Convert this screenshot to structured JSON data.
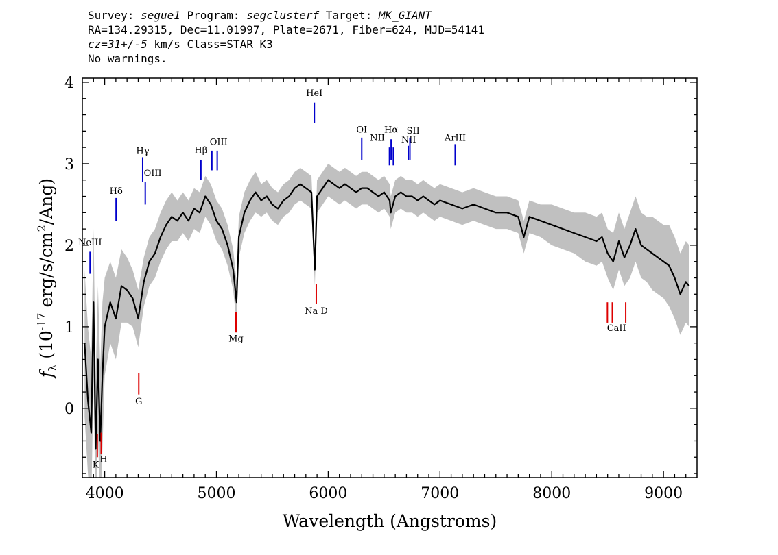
{
  "header": {
    "line1": {
      "survey_label": "Survey: ",
      "survey": "segue1",
      "program_label": " Program: ",
      "program": "segclusterf",
      "target_label": " Target: ",
      "target": "MK_GIANT"
    },
    "line2": "RA=134.29315, Dec=11.01997, Plate=2671, Fiber=624, MJD=54141",
    "line3": {
      "cz": "cz=31+/-5",
      "rest": " km/s Class=STAR K3"
    },
    "line4": "No warnings."
  },
  "colors": {
    "flux": "#000000",
    "error": "#c0c0c0",
    "emission": "#0000cc",
    "absorption": "#dd0000"
  },
  "chart_data": {
    "type": "line",
    "xlabel": "Wavelength (Angstroms)",
    "ylabel": "f_λ (10^-17 erg/s/cm²/Ang)",
    "xlim": [
      3800,
      9300
    ],
    "ylim": [
      -0.85,
      4.05
    ],
    "x_ticks": [
      "4000",
      "5000",
      "6000",
      "7000",
      "8000",
      "9000"
    ],
    "y_ticks": [
      "0",
      "1",
      "2",
      "3",
      "4"
    ],
    "series": [
      {
        "points": [
          [
            3820,
            0.8
          ],
          [
            3850,
            0.1
          ],
          [
            3880,
            -0.3
          ],
          [
            3900,
            1.3
          ],
          [
            3920,
            -0.5
          ],
          [
            3940,
            0.6
          ],
          [
            3960,
            -0.4
          ],
          [
            3980,
            0.4
          ],
          [
            4000,
            1.0
          ],
          [
            4050,
            1.3
          ],
          [
            4100,
            1.1
          ],
          [
            4150,
            1.5
          ],
          [
            4200,
            1.45
          ],
          [
            4250,
            1.35
          ],
          [
            4300,
            1.1
          ],
          [
            4350,
            1.55
          ],
          [
            4400,
            1.8
          ],
          [
            4450,
            1.9
          ],
          [
            4500,
            2.1
          ],
          [
            4550,
            2.25
          ],
          [
            4600,
            2.35
          ],
          [
            4650,
            2.3
          ],
          [
            4700,
            2.4
          ],
          [
            4750,
            2.3
          ],
          [
            4800,
            2.45
          ],
          [
            4850,
            2.4
          ],
          [
            4900,
            2.6
          ],
          [
            4950,
            2.5
          ],
          [
            5000,
            2.3
          ],
          [
            5050,
            2.2
          ],
          [
            5100,
            2.0
          ],
          [
            5150,
            1.7
          ],
          [
            5180,
            1.3
          ],
          [
            5200,
            2.1
          ],
          [
            5250,
            2.4
          ],
          [
            5300,
            2.55
          ],
          [
            5350,
            2.65
          ],
          [
            5400,
            2.55
          ],
          [
            5450,
            2.6
          ],
          [
            5500,
            2.5
          ],
          [
            5550,
            2.45
          ],
          [
            5600,
            2.55
          ],
          [
            5650,
            2.6
          ],
          [
            5700,
            2.7
          ],
          [
            5750,
            2.75
          ],
          [
            5800,
            2.7
          ],
          [
            5850,
            2.65
          ],
          [
            5880,
            1.7
          ],
          [
            5900,
            2.6
          ],
          [
            5950,
            2.7
          ],
          [
            6000,
            2.8
          ],
          [
            6050,
            2.75
          ],
          [
            6100,
            2.7
          ],
          [
            6150,
            2.75
          ],
          [
            6200,
            2.7
          ],
          [
            6250,
            2.65
          ],
          [
            6300,
            2.7
          ],
          [
            6350,
            2.7
          ],
          [
            6400,
            2.65
          ],
          [
            6450,
            2.6
          ],
          [
            6500,
            2.65
          ],
          [
            6550,
            2.55
          ],
          [
            6560,
            2.4
          ],
          [
            6600,
            2.6
          ],
          [
            6650,
            2.65
          ],
          [
            6700,
            2.6
          ],
          [
            6750,
            2.6
          ],
          [
            6800,
            2.55
          ],
          [
            6850,
            2.6
          ],
          [
            6900,
            2.55
          ],
          [
            6950,
            2.5
          ],
          [
            7000,
            2.55
          ],
          [
            7100,
            2.5
          ],
          [
            7200,
            2.45
          ],
          [
            7300,
            2.5
          ],
          [
            7400,
            2.45
          ],
          [
            7500,
            2.4
          ],
          [
            7600,
            2.4
          ],
          [
            7700,
            2.35
          ],
          [
            7750,
            2.1
          ],
          [
            7800,
            2.35
          ],
          [
            7900,
            2.3
          ],
          [
            8000,
            2.25
          ],
          [
            8100,
            2.2
          ],
          [
            8200,
            2.15
          ],
          [
            8300,
            2.1
          ],
          [
            8400,
            2.05
          ],
          [
            8450,
            2.1
          ],
          [
            8500,
            1.9
          ],
          [
            8550,
            1.8
          ],
          [
            8600,
            2.05
          ],
          [
            8650,
            1.85
          ],
          [
            8700,
            2.0
          ],
          [
            8750,
            2.2
          ],
          [
            8800,
            2.0
          ],
          [
            8850,
            1.95
          ],
          [
            8900,
            1.9
          ],
          [
            8950,
            1.85
          ],
          [
            9000,
            1.8
          ],
          [
            9050,
            1.75
          ],
          [
            9100,
            1.6
          ],
          [
            9150,
            1.4
          ],
          [
            9200,
            1.55
          ],
          [
            9230,
            1.5
          ]
        ],
        "error": [
          0.9,
          0.9,
          0.9,
          0.9,
          0.9,
          0.9,
          0.9,
          0.9,
          0.6,
          0.5,
          0.5,
          0.45,
          0.4,
          0.35,
          0.35,
          0.3,
          0.3,
          0.3,
          0.3,
          0.3,
          0.3,
          0.25,
          0.25,
          0.25,
          0.25,
          0.25,
          0.25,
          0.25,
          0.25,
          0.25,
          0.25,
          0.25,
          0.25,
          0.25,
          0.25,
          0.25,
          0.25,
          0.2,
          0.2,
          0.2,
          0.2,
          0.2,
          0.2,
          0.2,
          0.2,
          0.2,
          0.2,
          0.2,
          0.2,
          0.2,
          0.2,
          0.2,
          0.2,
          0.2,
          0.2,
          0.2,
          0.2,
          0.2,
          0.2,
          0.2,
          0.2,
          0.2,
          0.2,
          0.2,
          0.2,
          0.2,
          0.2,
          0.2,
          0.2,
          0.2,
          0.2,
          0.2,
          0.2,
          0.2,
          0.2,
          0.2,
          0.2,
          0.2,
          0.2,
          0.2,
          0.2,
          0.2,
          0.25,
          0.25,
          0.25,
          0.3,
          0.3,
          0.3,
          0.3,
          0.35,
          0.35,
          0.35,
          0.4,
          0.4,
          0.4,
          0.4,
          0.45,
          0.45,
          0.45,
          0.5,
          0.5,
          0.5,
          0.5,
          0.5,
          0.5,
          0.5
        ]
      }
    ],
    "emission_lines": [
      {
        "label": "NeIII",
        "x": [
          3869
        ],
        "y0": 1.65,
        "y1": 1.92,
        "lx": 3869,
        "ly": 2.0
      },
      {
        "label": "Hδ",
        "x": [
          4102
        ],
        "y0": 2.3,
        "y1": 2.58,
        "lx": 4102,
        "ly": 2.63
      },
      {
        "label": "Hγ",
        "x": [
          4340
        ],
        "y0": 2.78,
        "y1": 3.08,
        "lx": 4340,
        "ly": 3.12
      },
      {
        "label": "OIII",
        "x": [
          4363
        ],
        "y0": 2.5,
        "y1": 2.78,
        "lx": 4430,
        "ly": 2.85
      },
      {
        "label": "Hβ",
        "x": [
          4861
        ],
        "y0": 2.8,
        "y1": 3.05,
        "lx": 4861,
        "ly": 3.13
      },
      {
        "label": "OIII",
        "x": [
          4959,
          5007
        ],
        "y0": 2.92,
        "y1": 3.16,
        "lx": 5020,
        "ly": 3.23
      },
      {
        "label": "HeI",
        "x": [
          5876
        ],
        "y0": 3.5,
        "y1": 3.75,
        "lx": 5876,
        "ly": 3.83
      },
      {
        "label": "OI",
        "x": [
          6300
        ],
        "y0": 3.05,
        "y1": 3.32,
        "lx": 6300,
        "ly": 3.38
      },
      {
        "label": "NII",
        "x": [
          6548,
          6583
        ],
        "y0": 2.98,
        "y1": 3.2,
        "lx": 6440,
        "ly": 3.28
      },
      {
        "label": "Hα",
        "x": [
          6563
        ],
        "y0": 3.05,
        "y1": 3.3,
        "lx": 6563,
        "ly": 3.38
      },
      {
        "label": "NII",
        "x": [
          6716
        ],
        "y0": 3.05,
        "y1": 3.22,
        "lx": 6720,
        "ly": 3.26
      },
      {
        "label": "SII",
        "x": [
          6731
        ],
        "y0": 3.05,
        "y1": 3.32,
        "lx": 6760,
        "ly": 3.37
      },
      {
        "label": "ArIII",
        "x": [
          7136
        ],
        "y0": 2.98,
        "y1": 3.24,
        "lx": 7136,
        "ly": 3.28
      }
    ],
    "absorption_lines": [
      {
        "label": "K",
        "x": [
          3934
        ],
        "y0": -0.6,
        "y1": -0.32,
        "lx": 3920,
        "ly": -0.73
      },
      {
        "label": "H",
        "x": [
          3969
        ],
        "y0": -0.56,
        "y1": -0.3,
        "lx": 3990,
        "ly": -0.66
      },
      {
        "label": "G",
        "x": [
          4305
        ],
        "y0": 0.17,
        "y1": 0.43,
        "lx": 4305,
        "ly": 0.05
      },
      {
        "label": "Mg",
        "x": [
          5175
        ],
        "y0": 0.93,
        "y1": 1.18,
        "lx": 5175,
        "ly": 0.82
      },
      {
        "label": "Na D",
        "x": [
          5893
        ],
        "y0": 1.28,
        "y1": 1.52,
        "lx": 5893,
        "ly": 1.16
      },
      {
        "label": "CaII",
        "x": [
          8498,
          8542,
          8662
        ],
        "y0": 1.05,
        "y1": 1.3,
        "lx": 8580,
        "ly": 0.95
      }
    ]
  }
}
